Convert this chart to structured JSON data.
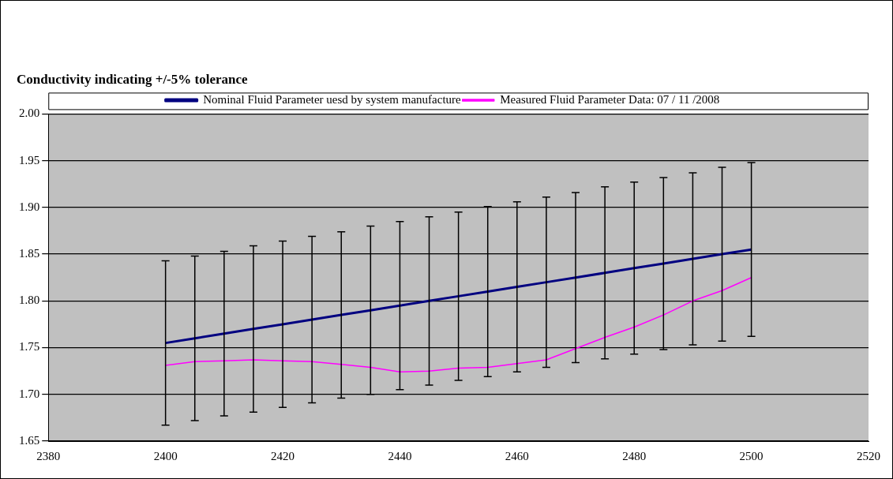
{
  "chart_data": {
    "type": "line",
    "title": "Conductivity indicating +/-5% tolerance",
    "x": [
      2400,
      2405,
      2410,
      2415,
      2420,
      2425,
      2430,
      2435,
      2440,
      2445,
      2450,
      2455,
      2460,
      2465,
      2470,
      2475,
      2480,
      2485,
      2490,
      2495,
      2500
    ],
    "series": [
      {
        "name": "Nominal Fluid Parameter uesd by system manufacture",
        "color": "#000080",
        "values": [
          1.755,
          1.76,
          1.765,
          1.77,
          1.775,
          1.78,
          1.785,
          1.79,
          1.795,
          1.8,
          1.805,
          1.81,
          1.815,
          1.82,
          1.825,
          1.83,
          1.835,
          1.84,
          1.845,
          1.85,
          1.855
        ],
        "errors": [
          0.088,
          0.088,
          0.088,
          0.089,
          0.089,
          0.089,
          0.089,
          0.09,
          0.09,
          0.09,
          0.09,
          0.091,
          0.091,
          0.091,
          0.091,
          0.092,
          0.092,
          0.092,
          0.092,
          0.093,
          0.093
        ]
      },
      {
        "name": "Measured Fluid Parameter Data: 07 / 11 /2008",
        "color": "#ff00ff",
        "values": [
          1.731,
          1.735,
          1.736,
          1.737,
          1.736,
          1.735,
          1.732,
          1.729,
          1.724,
          1.725,
          1.728,
          1.729,
          1.733,
          1.737,
          1.749,
          1.761,
          1.772,
          1.785,
          1.8,
          1.811,
          1.825
        ]
      }
    ],
    "xlim": [
      2380,
      2520
    ],
    "xticks": [
      2380,
      2400,
      2420,
      2440,
      2460,
      2480,
      2500,
      2520
    ],
    "ylim": [
      1.65,
      2.0
    ],
    "yticks": [
      1.65,
      {
        "value": 1.7,
        "label": "1.70"
      },
      1.75,
      {
        "value": 1.8,
        "label": "1.80"
      },
      1.85,
      {
        "value": 1.9,
        "label": "1.90"
      },
      1.95,
      {
        "value": 2.0,
        "label": "2.00"
      }
    ],
    "grid": "y",
    "legend": "top",
    "marker": "none"
  }
}
